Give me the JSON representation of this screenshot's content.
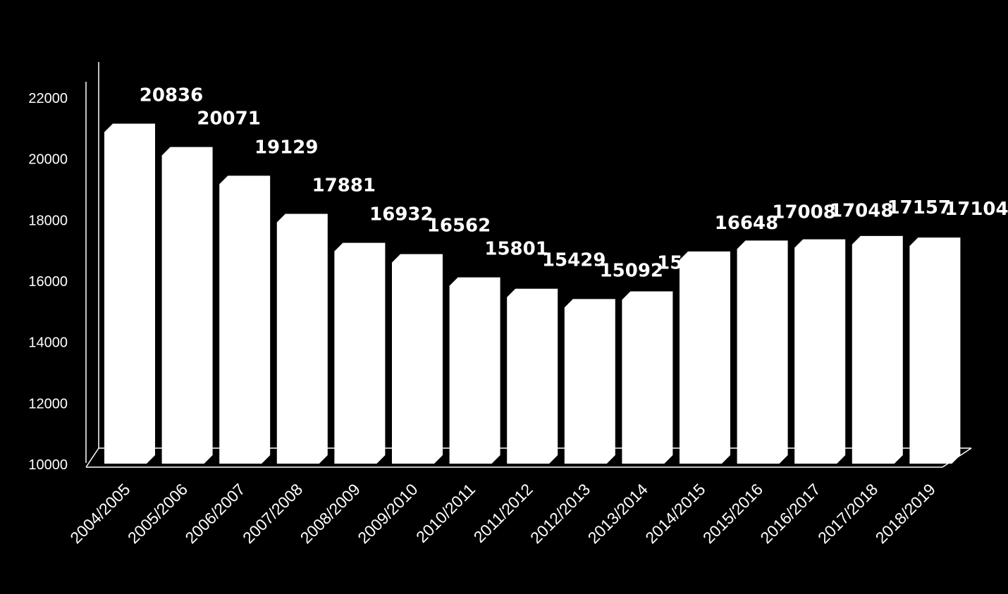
{
  "chart_data": {
    "type": "bar",
    "title": "",
    "xlabel": "",
    "ylabel": "",
    "categories": [
      "2004/2005",
      "2005/2006",
      "2006/2007",
      "2007/2008",
      "2008/2009",
      "2009/2010",
      "2010/2011",
      "2011/2012",
      "2012/2013",
      "2013/2014",
      "2014/2015",
      "2015/2016",
      "2016/2017",
      "2017/2018",
      "2018/2019"
    ],
    "values": [
      20836,
      20071,
      19129,
      17881,
      16932,
      16562,
      15801,
      15429,
      15092,
      15342,
      16648,
      17008,
      17048,
      17157,
      17104
    ],
    "ylim": [
      10000,
      22000
    ],
    "yticks": [
      10000,
      12000,
      14000,
      16000,
      18000,
      20000,
      22000
    ],
    "grid": false,
    "legend": "none",
    "style": "3d-bar",
    "colors": {
      "background": "#000000",
      "bar": "#ffffff",
      "axis": "#ffffff",
      "text": "#ffffff"
    }
  }
}
